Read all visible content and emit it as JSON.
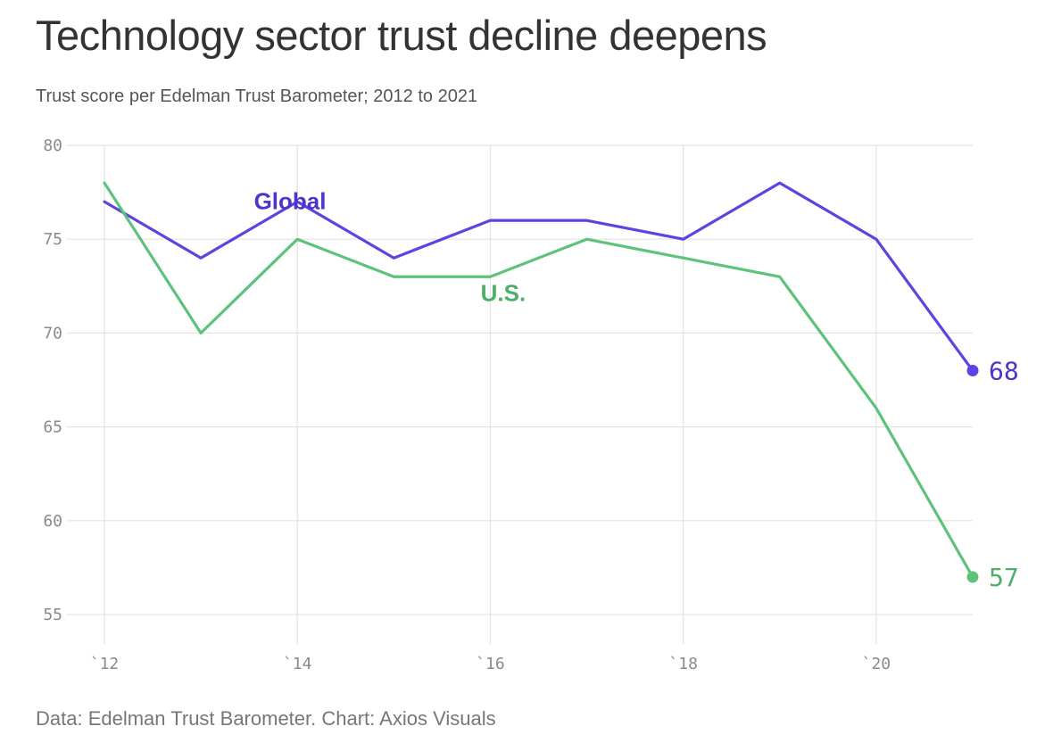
{
  "header": {
    "title": "Technology sector trust decline deepens",
    "subtitle": "Trust score per Edelman Trust Barometer; 2012 to 2021"
  },
  "footer": {
    "source": "Data: Edelman Trust Barometer. Chart: Axios Visuals"
  },
  "chart_data": {
    "type": "line",
    "title": "Technology sector trust decline deepens",
    "subtitle": "Trust score per Edelman Trust Barometer; 2012 to 2021",
    "xlabel": "",
    "ylabel": "",
    "x": [
      2012,
      2013,
      2014,
      2015,
      2016,
      2017,
      2018,
      2019,
      2020,
      2021
    ],
    "xlim": [
      2012,
      2021
    ],
    "ylim": [
      55,
      80
    ],
    "x_ticks": [
      2012,
      2014,
      2016,
      2018,
      2020
    ],
    "x_tick_labels": [
      "`12",
      "`14",
      "`16",
      "`18",
      "`20"
    ],
    "y_ticks": [
      55,
      60,
      65,
      70,
      75,
      80
    ],
    "y_tick_labels": [
      "55",
      "60",
      "65",
      "70",
      "75",
      "80"
    ],
    "grid": true,
    "legend": "inline labels",
    "series": [
      {
        "name": "Global",
        "color": "#5b45e0",
        "label_color": "#4a36c9",
        "values": [
          77,
          74,
          77,
          74,
          76,
          76,
          75,
          78,
          75,
          68
        ],
        "end_label": "68"
      },
      {
        "name": "U.S.",
        "color": "#5ec27a",
        "label_color": "#4fae69",
        "values": [
          78,
          70,
          75,
          73,
          73,
          75,
          74,
          73,
          66,
          57
        ],
        "end_label": "57"
      }
    ]
  }
}
